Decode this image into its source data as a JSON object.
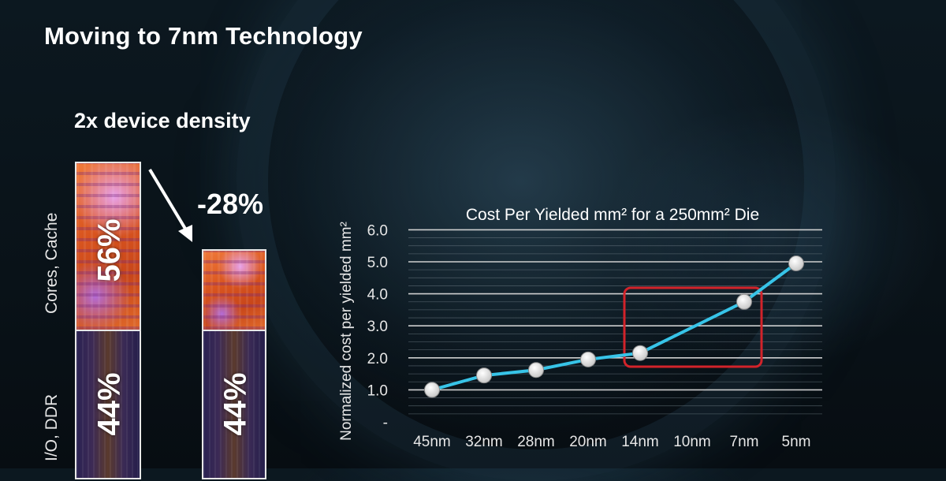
{
  "slide": {
    "title": "Moving to 7nm Technology",
    "density_label": "2x device density",
    "reduction_label": "-28%"
  },
  "die": {
    "cores_label": "Cores, Cache",
    "io_label": "I/O, DDR",
    "before": {
      "cores_pct": "56%",
      "io_pct": "44%"
    },
    "after": {
      "io_pct": "44%"
    }
  },
  "colors": {
    "line": "#37c4e8",
    "marker": "#c8c8c8",
    "highlight_box": "#d2232a"
  },
  "chart_data": {
    "type": "line",
    "title": "Cost Per Yielded mm² for a 250mm² Die",
    "ylabel": "Normalized cost per yielded mm²",
    "xlabel": "",
    "categories": [
      "45nm",
      "32nm",
      "28nm",
      "20nm",
      "14nm",
      "10nm",
      "7nm",
      "5nm"
    ],
    "ylim": [
      0,
      6
    ],
    "yticks": [
      "-",
      "1.0",
      "2.0",
      "3.0",
      "4.0",
      "5.0",
      "6.0"
    ],
    "series": [
      {
        "points": [
          {
            "x": "45nm",
            "y": 1.0
          },
          {
            "x": "32nm",
            "y": 1.45
          },
          {
            "x": "28nm",
            "y": 1.62
          },
          {
            "x": "20nm",
            "y": 1.95
          },
          {
            "x": "14nm",
            "y": 2.15
          },
          {
            "x": "7nm",
            "y": 3.75
          },
          {
            "x": "5nm",
            "y": 4.95
          }
        ]
      }
    ],
    "highlight": {
      "from": "14nm",
      "to": "7nm"
    },
    "grid": true
  }
}
